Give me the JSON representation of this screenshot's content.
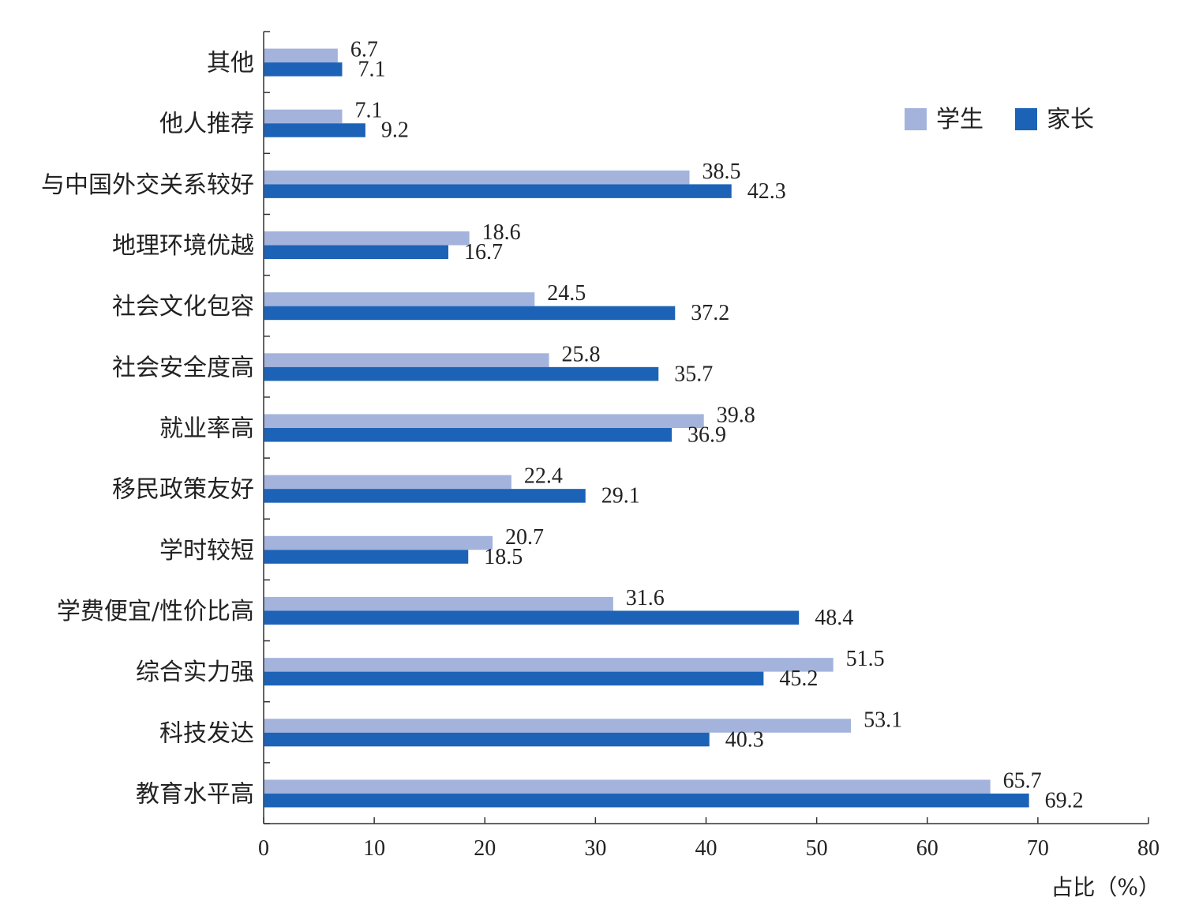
{
  "chart_data": {
    "type": "bar",
    "orientation": "horizontal",
    "categories": [
      "其他",
      "他人推荐",
      "与中国外交关系较好",
      "地理环境优越",
      "社会文化包容",
      "社会安全度高",
      "就业率高",
      "移民政策友好",
      "学时较短",
      "学费便宜/性价比高",
      "综合实力强",
      "科技发达",
      "教育水平高"
    ],
    "series": [
      {
        "name": "学生",
        "color": "#a3b3dc",
        "values": [
          6.7,
          7.1,
          38.5,
          18.6,
          24.5,
          25.8,
          39.8,
          22.4,
          20.7,
          31.6,
          51.5,
          53.1,
          65.7
        ]
      },
      {
        "name": "家长",
        "color": "#1c63b7",
        "values": [
          7.1,
          9.2,
          42.3,
          16.7,
          37.2,
          35.7,
          36.9,
          29.1,
          18.5,
          48.4,
          45.2,
          40.3,
          69.2
        ]
      }
    ],
    "value_labels": {
      "学生": [
        "6.7",
        "7.1",
        "38.5",
        "18.6",
        "24.5",
        "25.8",
        "39.8",
        "22.4",
        "20.7",
        "31.6",
        "51.5",
        "53.1",
        "65.7"
      ],
      "家长": [
        "7.1",
        "9.2",
        "42.3",
        "16.7",
        "37.2",
        "35.7",
        "36.9",
        "29.1",
        "18.5",
        "48.4",
        "45.2",
        "40.3",
        "69.2"
      ]
    },
    "xlabel": "占比（%）",
    "xlim": [
      0,
      80
    ],
    "xticks": [
      0,
      10,
      20,
      30,
      40,
      50,
      60,
      70,
      80
    ],
    "xtick_labels": [
      "0",
      "10",
      "20",
      "30",
      "40",
      "50",
      "60",
      "70",
      "80"
    ],
    "grid": false,
    "legend": {
      "placement": "top-right",
      "entries": [
        "学生",
        "家长"
      ]
    }
  }
}
